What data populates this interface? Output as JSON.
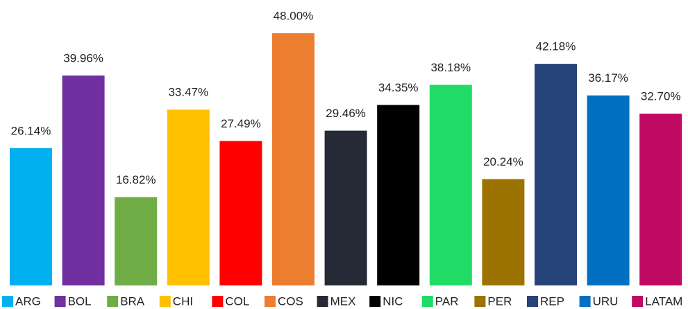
{
  "chart_data": {
    "type": "bar",
    "categories": [
      "ARG",
      "BOL",
      "BRA",
      "CHI",
      "COL",
      "COS",
      "MEX",
      "NIC",
      "PAR",
      "PER",
      "REP",
      "URU",
      "LATAM"
    ],
    "values": [
      26.14,
      39.96,
      16.82,
      33.47,
      27.49,
      48.0,
      29.46,
      34.35,
      38.18,
      20.24,
      42.18,
      36.17,
      32.7
    ],
    "value_labels": [
      "26.14%",
      "39.96%",
      "16.82%",
      "33.47%",
      "27.49%",
      "48.00%",
      "29.46%",
      "34.35%",
      "38.18%",
      "20.24%",
      "42.18%",
      "36.17%",
      "32.70%"
    ],
    "colors": [
      "#00b0f0",
      "#7030a0",
      "#70ad47",
      "#ffc000",
      "#ff0000",
      "#ed7d31",
      "#262a36",
      "#000000",
      "#20dc66",
      "#9c7300",
      "#264478",
      "#0070c0",
      "#c00a64"
    ],
    "legend": "bottom"
  }
}
